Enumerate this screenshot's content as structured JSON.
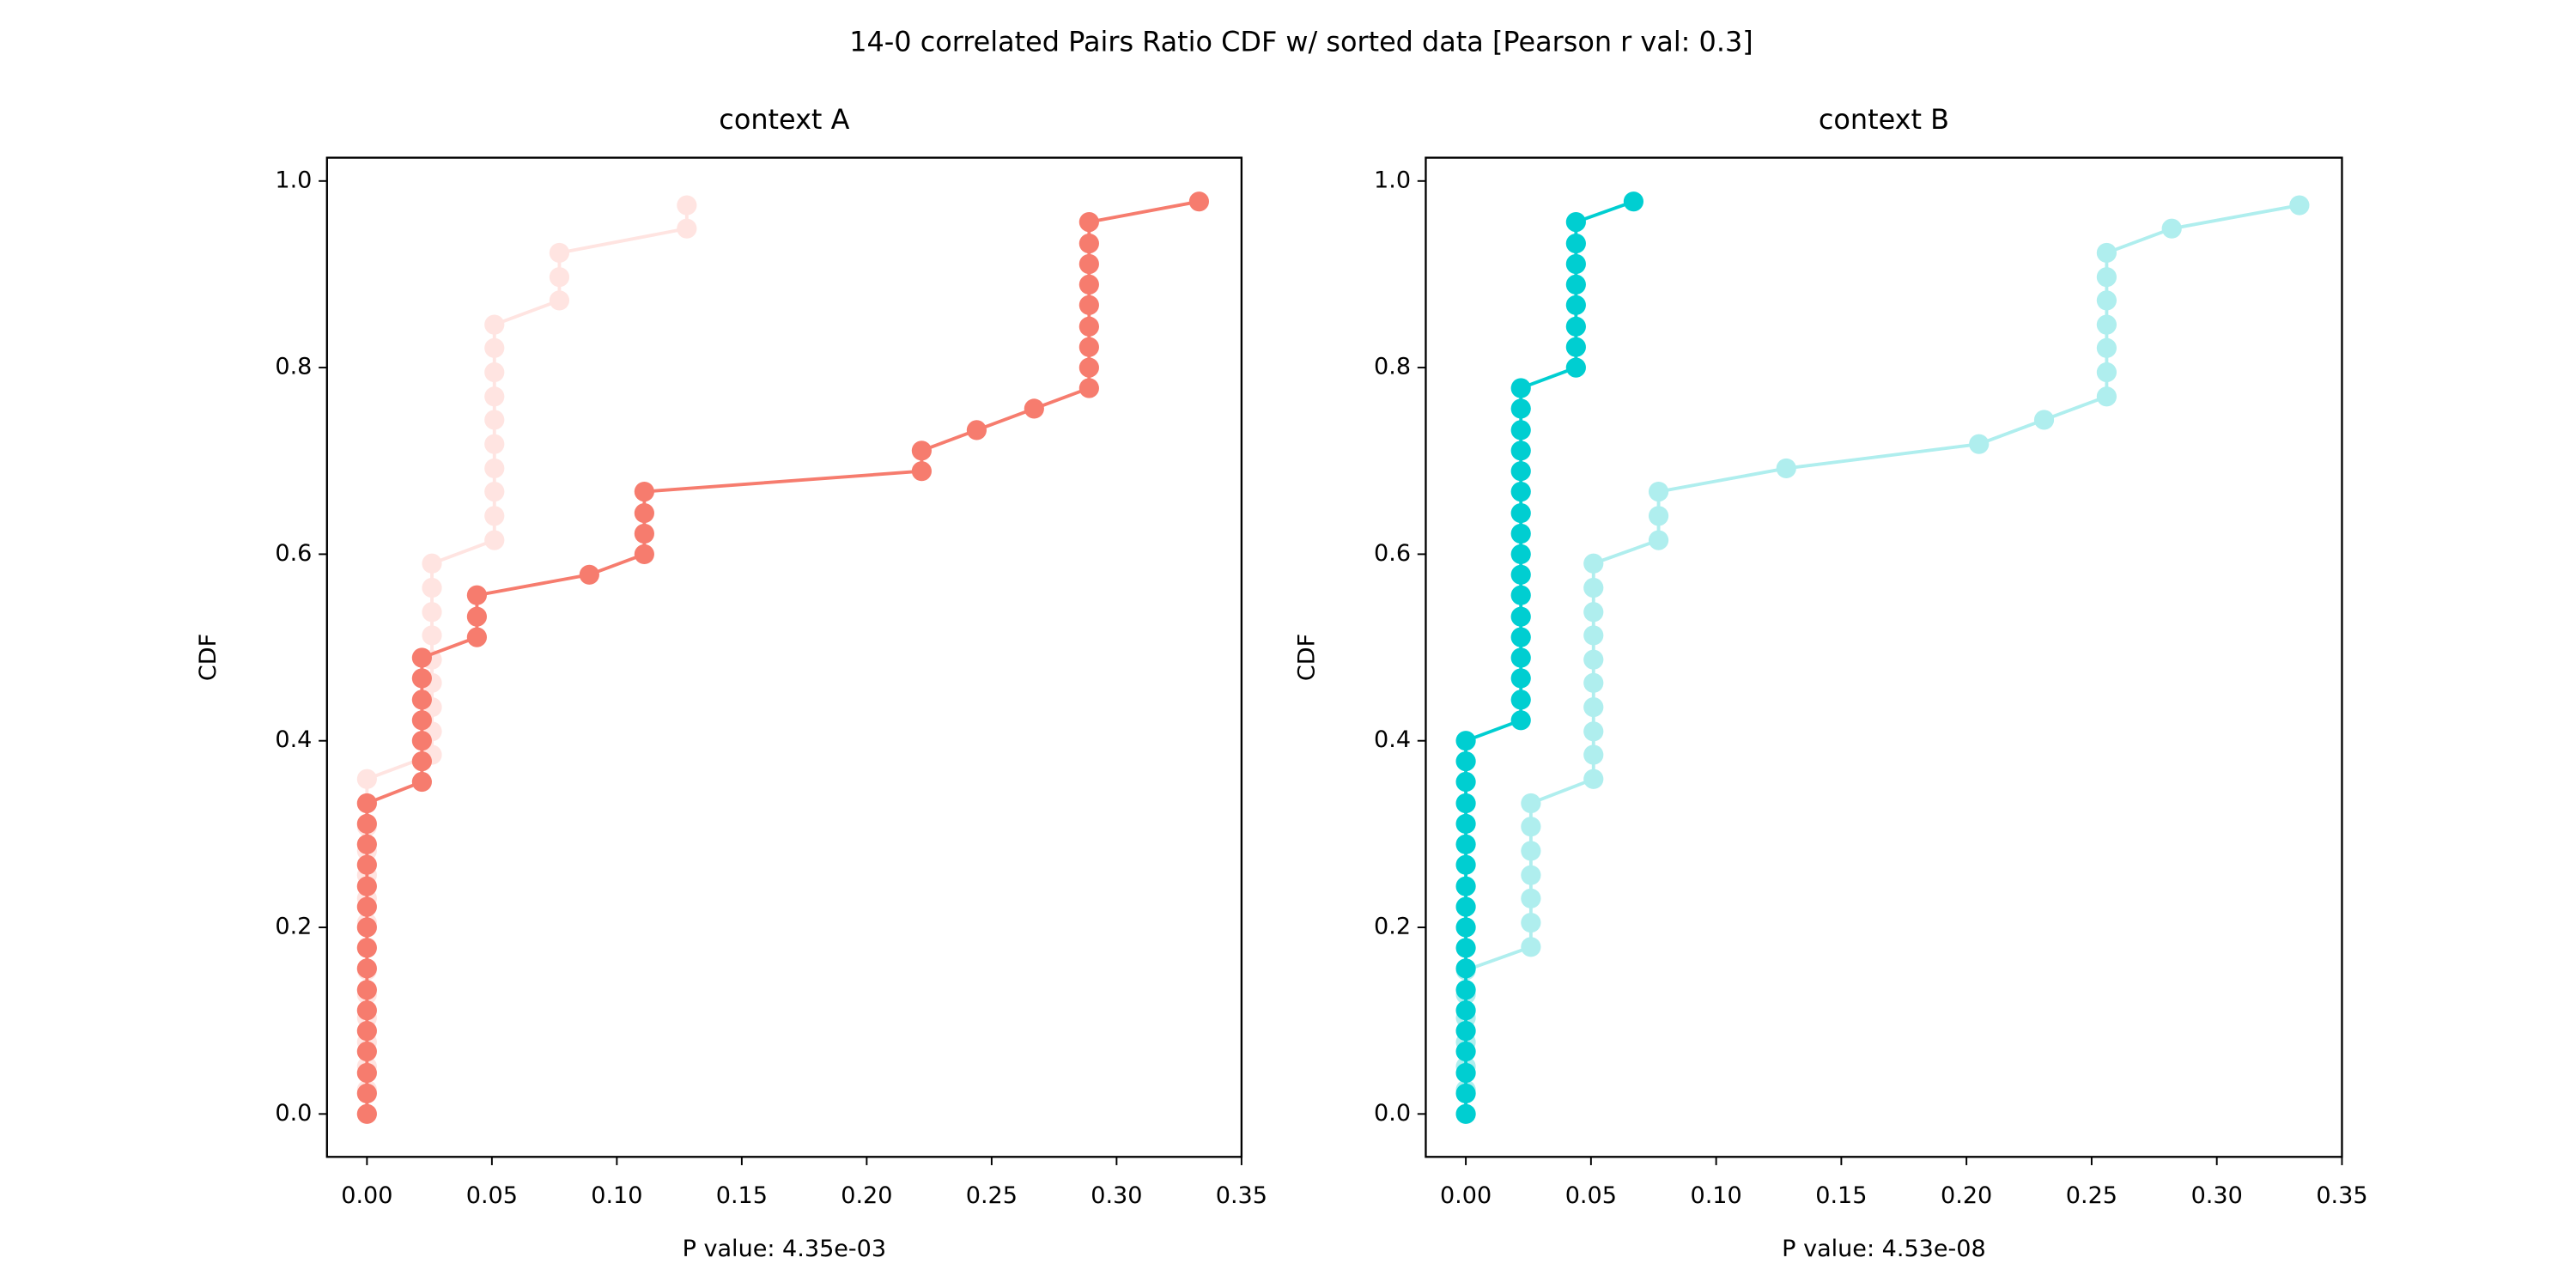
{
  "title": "14-0 correlated Pairs Ratio CDF w/ sorted data [Pearson r val: 0.3]",
  "chart_data": [
    {
      "type": "line",
      "title": "context A",
      "xlabel": "P value: 4.35e-03",
      "ylabel": "CDF",
      "xlim": [
        -0.016,
        0.35
      ],
      "ylim": [
        -0.046,
        1.025
      ],
      "xticks": [
        {
          "value": 0,
          "label": "0.00"
        },
        {
          "value": 0.05,
          "label": "0.05"
        },
        {
          "value": 0.1,
          "label": "0.10"
        },
        {
          "value": 0.15,
          "label": "0.15"
        },
        {
          "value": 0.2,
          "label": "0.20"
        },
        {
          "value": 0.25,
          "label": "0.25"
        },
        {
          "value": 0.3,
          "label": "0.30"
        },
        {
          "value": 0.35,
          "label": "0.35"
        }
      ],
      "yticks": [
        {
          "value": 0,
          "label": "0.0"
        },
        {
          "value": 0.2,
          "label": "0.2"
        },
        {
          "value": 0.4,
          "label": "0.4"
        },
        {
          "value": 0.6,
          "label": "0.6"
        },
        {
          "value": 0.8,
          "label": "0.8"
        },
        {
          "value": 1,
          "label": "1.0"
        }
      ],
      "series": [
        {
          "color": "#ffe4e1",
          "x": [
            0,
            0,
            0,
            0,
            0,
            0,
            0,
            0,
            0,
            0,
            0,
            0,
            0,
            0,
            0,
            0.026,
            0.026,
            0.026,
            0.026,
            0.026,
            0.026,
            0.026,
            0.026,
            0.026,
            0.051,
            0.051,
            0.051,
            0.051,
            0.051,
            0.051,
            0.051,
            0.051,
            0.051,
            0.051,
            0.077,
            0.077,
            0.077,
            0.128,
            0.128
          ],
          "values": [
            0,
            0.026,
            0.051,
            0.077,
            0.103,
            0.128,
            0.154,
            0.179,
            0.205,
            0.231,
            0.256,
            0.282,
            0.308,
            0.333,
            0.359,
            0.385,
            0.41,
            0.436,
            0.462,
            0.487,
            0.513,
            0.538,
            0.564,
            0.59,
            0.615,
            0.641,
            0.667,
            0.692,
            0.718,
            0.744,
            0.769,
            0.795,
            0.821,
            0.846,
            0.872,
            0.897,
            0.923,
            0.949,
            0.974
          ]
        },
        {
          "color": "#f67c6e",
          "x": [
            0,
            0,
            0,
            0,
            0,
            0,
            0,
            0,
            0,
            0,
            0,
            0,
            0,
            0,
            0,
            0,
            0.022,
            0.022,
            0.022,
            0.022,
            0.022,
            0.022,
            0.022,
            0.044,
            0.044,
            0.044,
            0.089,
            0.111,
            0.111,
            0.111,
            0.111,
            0.222,
            0.222,
            0.244,
            0.267,
            0.289,
            0.289,
            0.289,
            0.289,
            0.289,
            0.289,
            0.289,
            0.289,
            0.289,
            0.333
          ],
          "values": [
            0,
            0.022,
            0.044,
            0.067,
            0.089,
            0.111,
            0.133,
            0.156,
            0.178,
            0.2,
            0.222,
            0.244,
            0.267,
            0.289,
            0.311,
            0.333,
            0.356,
            0.378,
            0.4,
            0.422,
            0.444,
            0.467,
            0.489,
            0.511,
            0.533,
            0.556,
            0.578,
            0.6,
            0.622,
            0.644,
            0.667,
            0.689,
            0.711,
            0.733,
            0.756,
            0.778,
            0.8,
            0.822,
            0.844,
            0.867,
            0.889,
            0.911,
            0.933,
            0.956,
            0.978
          ]
        }
      ]
    },
    {
      "type": "line",
      "title": "context B",
      "xlabel": "P value: 4.53e-08",
      "ylabel": "CDF",
      "xlim": [
        -0.016,
        0.35
      ],
      "ylim": [
        -0.046,
        1.025
      ],
      "xticks": [
        {
          "value": 0,
          "label": "0.00"
        },
        {
          "value": 0.05,
          "label": "0.05"
        },
        {
          "value": 0.1,
          "label": "0.10"
        },
        {
          "value": 0.15,
          "label": "0.15"
        },
        {
          "value": 0.2,
          "label": "0.20"
        },
        {
          "value": 0.25,
          "label": "0.25"
        },
        {
          "value": 0.3,
          "label": "0.30"
        },
        {
          "value": 0.35,
          "label": "0.35"
        }
      ],
      "yticks": [
        {
          "value": 0,
          "label": "0.0"
        },
        {
          "value": 0.2,
          "label": "0.2"
        },
        {
          "value": 0.4,
          "label": "0.4"
        },
        {
          "value": 0.6,
          "label": "0.6"
        },
        {
          "value": 0.8,
          "label": "0.8"
        },
        {
          "value": 1,
          "label": "1.0"
        }
      ],
      "series": [
        {
          "color": "#afeeee",
          "x": [
            0,
            0,
            0,
            0,
            0,
            0,
            0,
            0.026,
            0.026,
            0.026,
            0.026,
            0.026,
            0.026,
            0.026,
            0.051,
            0.051,
            0.051,
            0.051,
            0.051,
            0.051,
            0.051,
            0.051,
            0.051,
            0.051,
            0.077,
            0.077,
            0.077,
            0.128,
            0.205,
            0.231,
            0.256,
            0.256,
            0.256,
            0.256,
            0.256,
            0.256,
            0.256,
            0.282,
            0.333
          ],
          "values": [
            0,
            0.026,
            0.051,
            0.077,
            0.103,
            0.128,
            0.154,
            0.179,
            0.205,
            0.231,
            0.256,
            0.282,
            0.308,
            0.333,
            0.359,
            0.385,
            0.41,
            0.436,
            0.462,
            0.487,
            0.513,
            0.538,
            0.564,
            0.59,
            0.615,
            0.641,
            0.667,
            0.692,
            0.718,
            0.744,
            0.769,
            0.795,
            0.821,
            0.846,
            0.872,
            0.897,
            0.923,
            0.949,
            0.974
          ]
        },
        {
          "color": "#00ced1",
          "x": [
            0,
            0,
            0,
            0,
            0,
            0,
            0,
            0,
            0,
            0,
            0,
            0,
            0,
            0,
            0,
            0,
            0,
            0,
            0,
            0.022,
            0.022,
            0.022,
            0.022,
            0.022,
            0.022,
            0.022,
            0.022,
            0.022,
            0.022,
            0.022,
            0.022,
            0.022,
            0.022,
            0.022,
            0.022,
            0.022,
            0.044,
            0.044,
            0.044,
            0.044,
            0.044,
            0.044,
            0.044,
            0.044,
            0.067
          ],
          "values": [
            0,
            0.022,
            0.044,
            0.067,
            0.089,
            0.111,
            0.133,
            0.156,
            0.178,
            0.2,
            0.222,
            0.244,
            0.267,
            0.289,
            0.311,
            0.333,
            0.356,
            0.378,
            0.4,
            0.422,
            0.444,
            0.467,
            0.489,
            0.511,
            0.533,
            0.556,
            0.578,
            0.6,
            0.622,
            0.644,
            0.667,
            0.689,
            0.711,
            0.733,
            0.756,
            0.778,
            0.8,
            0.822,
            0.844,
            0.867,
            0.889,
            0.911,
            0.933,
            0.956,
            0.978
          ]
        }
      ]
    }
  ]
}
